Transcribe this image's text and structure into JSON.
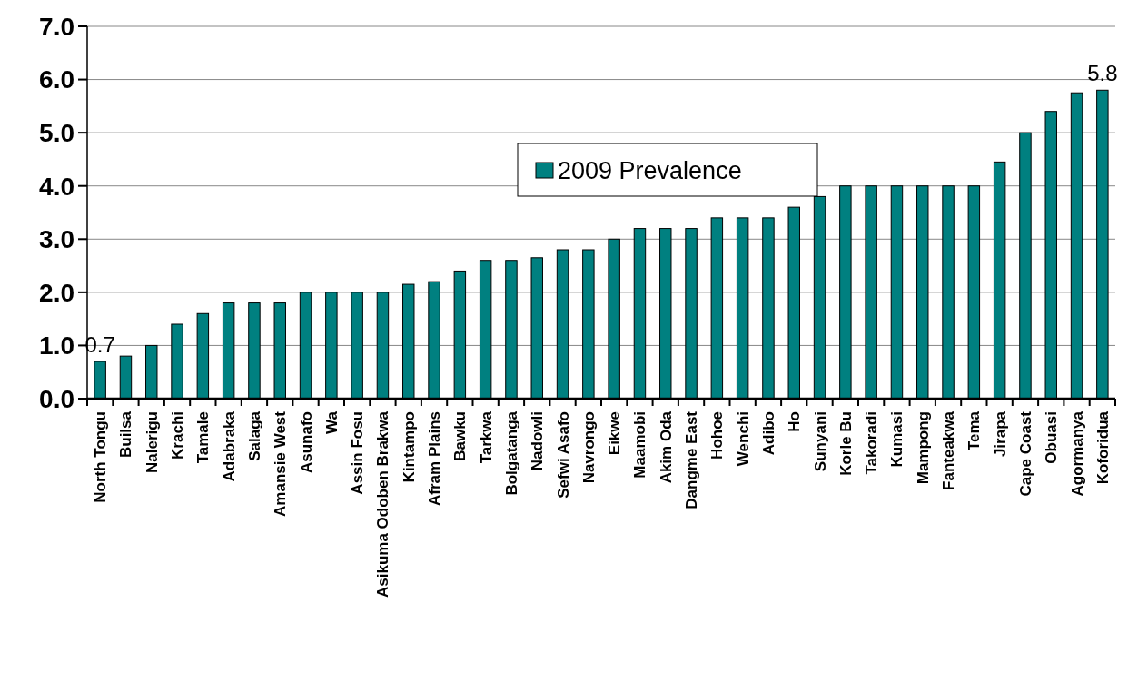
{
  "chart_data": {
    "type": "bar",
    "categories": [
      "North Tongu",
      "Builsa",
      "Nalerigu",
      "Krachi",
      "Tamale",
      "Adabraka",
      "Salaga",
      "Amansie West",
      "Asunafo",
      "Wa",
      "Assin Fosu",
      "Asikuma Odoben Brakwa",
      "Kintampo",
      "Afram Plains",
      "Bawku",
      "Tarkwa",
      "Bolgatanga",
      "Nadowli",
      "Sefwi Asafo",
      "Navrongo",
      "Eikwe",
      "Maamobi",
      "Akim Oda",
      "Dangme East",
      "Hohoe",
      "Wenchi",
      "Adibo",
      "Ho",
      "Sunyani",
      "Korle Bu",
      "Takoradi",
      "Kumasi",
      "Mampong",
      "Fanteakwa",
      "Tema",
      "Jirapa",
      "Cape Coast",
      "Obuasi",
      "Agormanya",
      "Koforidua"
    ],
    "series": [
      {
        "name": "2009 Prevalence",
        "color": "#008080",
        "values": [
          0.7,
          0.8,
          1.0,
          1.4,
          1.6,
          1.8,
          1.8,
          1.8,
          2.0,
          2.0,
          2.0,
          2.0,
          2.15,
          2.2,
          2.4,
          2.6,
          2.6,
          2.65,
          2.8,
          2.8,
          3.0,
          3.2,
          3.2,
          3.2,
          3.4,
          3.4,
          3.4,
          3.6,
          3.8,
          4.0,
          4.0,
          4.0,
          4.0,
          4.0,
          4.0,
          4.45,
          5.0,
          5.4,
          5.75,
          5.8
        ],
        "value_labels": [
          "0.7",
          null,
          null,
          null,
          null,
          null,
          null,
          null,
          null,
          null,
          null,
          null,
          null,
          null,
          null,
          null,
          null,
          null,
          null,
          null,
          null,
          null,
          null,
          null,
          null,
          null,
          null,
          null,
          null,
          null,
          null,
          null,
          null,
          null,
          null,
          null,
          null,
          null,
          null,
          "5.8"
        ]
      }
    ],
    "ylim": [
      0,
      7
    ],
    "yticks": [
      {
        "value": 0,
        "label": "0.0"
      },
      {
        "value": 1,
        "label": "1.0"
      },
      {
        "value": 2,
        "label": "2.0"
      },
      {
        "value": 3,
        "label": "3.0"
      },
      {
        "value": 4,
        "label": "4.0"
      },
      {
        "value": 5,
        "label": "5.0"
      },
      {
        "value": 6,
        "label": "6.0"
      },
      {
        "value": 7,
        "label": "7.0"
      }
    ],
    "grid": "y",
    "legend": "top"
  }
}
